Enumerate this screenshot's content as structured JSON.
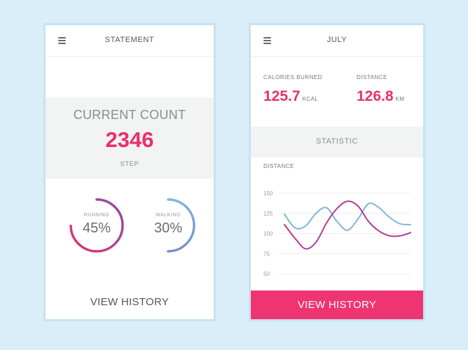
{
  "left_card": {
    "title": "STATEMENT",
    "current_count_label": "CURRENT COUNT",
    "current_count_value": "2346",
    "current_count_unit": "STEP",
    "rings": [
      {
        "label": "RUNNING",
        "value_text": "45%",
        "fraction": 0.45
      },
      {
        "label": "WALKING",
        "value_text": "30%",
        "fraction": 0.3
      }
    ],
    "view_history_label": "VIEW HISTORY"
  },
  "right_card": {
    "title": "JULY",
    "calories": {
      "label": "CALORIES BURNED",
      "value": "125.7",
      "unit": "KCAL"
    },
    "distance": {
      "label": "DISTANCE",
      "value": "126.8",
      "unit": "KM"
    },
    "statistic_title": "STATISTIC",
    "chart_label": "DISTANCE",
    "view_history_label": "VIEW HISTORY"
  },
  "colors": {
    "accent": "#ea2f6c",
    "button": "#ef3472",
    "panel_gray": "#f2f3f3",
    "background": "#d9eef9",
    "series_blue": "#7fb5dc",
    "series_magenta": "#b33c95",
    "ring_running_start": "#ea2f6c",
    "ring_running_end": "#8b4fa8",
    "ring_walking_start": "#7fb5dc",
    "ring_walking_end": "#7b8fc7"
  },
  "icons": {
    "menu": "hamburger-menu-icon"
  },
  "chart_data": {
    "type": "line",
    "title": "",
    "ylabel": "DISTANCE",
    "yticks": [
      150,
      125,
      100,
      75,
      50
    ],
    "ylim": [
      40,
      160
    ],
    "x": [
      0,
      1,
      2,
      3,
      4,
      5,
      6,
      7,
      8,
      9,
      10,
      11,
      12
    ],
    "grid": true,
    "legend": "none",
    "series": [
      {
        "values": [
          124,
          107,
          109,
          125,
          132,
          115,
          104,
          118,
          137,
          132,
          120,
          112,
          111
        ]
      },
      {
        "values": [
          111,
          94,
          81,
          89,
          113,
          131,
          140,
          134,
          115,
          103,
          97,
          97,
          101
        ]
      }
    ]
  }
}
